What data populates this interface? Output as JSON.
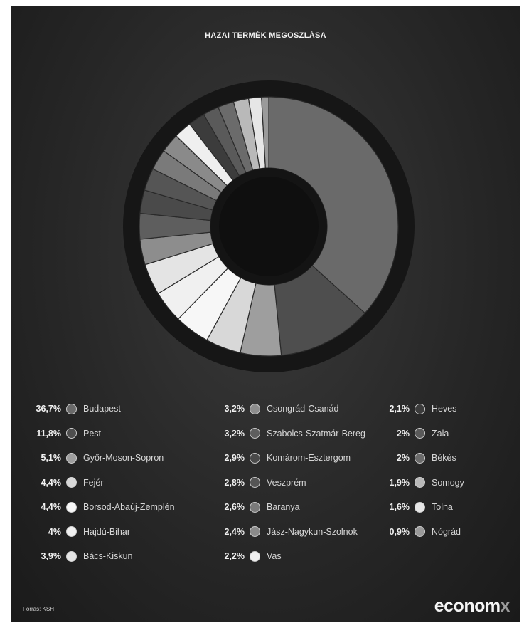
{
  "header": {
    "title": "HAZAI TERMÉK MEGOSZLÁSA"
  },
  "chart_data": {
    "type": "pie",
    "variant": "donut",
    "title": "HAZAI TERMÉK MEGOSZLÁSA",
    "unit": "%",
    "legend_position": "bottom, 3 columns",
    "slices": [
      {
        "label": "Budapest",
        "value": 36.7,
        "value_label": "36,7%",
        "color": "#6a6a6a"
      },
      {
        "label": "Pest",
        "value": 11.8,
        "value_label": "11,8%",
        "color": "#4e4e4e"
      },
      {
        "label": "Győr-Moson-Sopron",
        "value": 5.1,
        "value_label": "5,1%",
        "color": "#9e9e9e"
      },
      {
        "label": "Fejér",
        "value": 4.4,
        "value_label": "4,4%",
        "color": "#d8d8d8"
      },
      {
        "label": "Borsod-Abaúj-Zemplén",
        "value": 4.4,
        "value_label": "4,4%",
        "color": "#f7f7f7"
      },
      {
        "label": "Hajdú-Bihar",
        "value": 4.0,
        "value_label": "4%",
        "color": "#f0f0f0"
      },
      {
        "label": "Bács-Kiskun",
        "value": 3.9,
        "value_label": "3,9%",
        "color": "#e4e4e4"
      },
      {
        "label": "Csongrád-Csanád",
        "value": 3.2,
        "value_label": "3,2%",
        "color": "#8d8d8d"
      },
      {
        "label": "Szabolcs-Szatmár-Bereg",
        "value": 3.2,
        "value_label": "3,2%",
        "color": "#5e5e5e"
      },
      {
        "label": "Komárom-Esztergom",
        "value": 2.9,
        "value_label": "2,9%",
        "color": "#4a4a4a"
      },
      {
        "label": "Veszprém",
        "value": 2.8,
        "value_label": "2,8%",
        "color": "#555555"
      },
      {
        "label": "Baranya",
        "value": 2.6,
        "value_label": "2,6%",
        "color": "#7a7a7a"
      },
      {
        "label": "Jász-Nagykun-Szolnok",
        "value": 2.4,
        "value_label": "2,4%",
        "color": "#8a8a8a"
      },
      {
        "label": "Vas",
        "value": 2.2,
        "value_label": "2,2%",
        "color": "#efefef"
      },
      {
        "label": "Heves",
        "value": 2.1,
        "value_label": "2,1%",
        "color": "#3c3c3c"
      },
      {
        "label": "Zala",
        "value": 2.0,
        "value_label": "2%",
        "color": "#5a5a5a"
      },
      {
        "label": "Békés",
        "value": 2.0,
        "value_label": "2%",
        "color": "#6b6b6b"
      },
      {
        "label": "Somogy",
        "value": 1.9,
        "value_label": "1,9%",
        "color": "#b9b9b9"
      },
      {
        "label": "Tolna",
        "value": 1.6,
        "value_label": "1,6%",
        "color": "#e6e6e6"
      },
      {
        "label": "Nógrád",
        "value": 0.9,
        "value_label": "0,9%",
        "color": "#9a9a9a"
      }
    ]
  },
  "footer": {
    "source": "Forrás: KSH",
    "logo_main": "econom",
    "logo_accent": "x"
  }
}
